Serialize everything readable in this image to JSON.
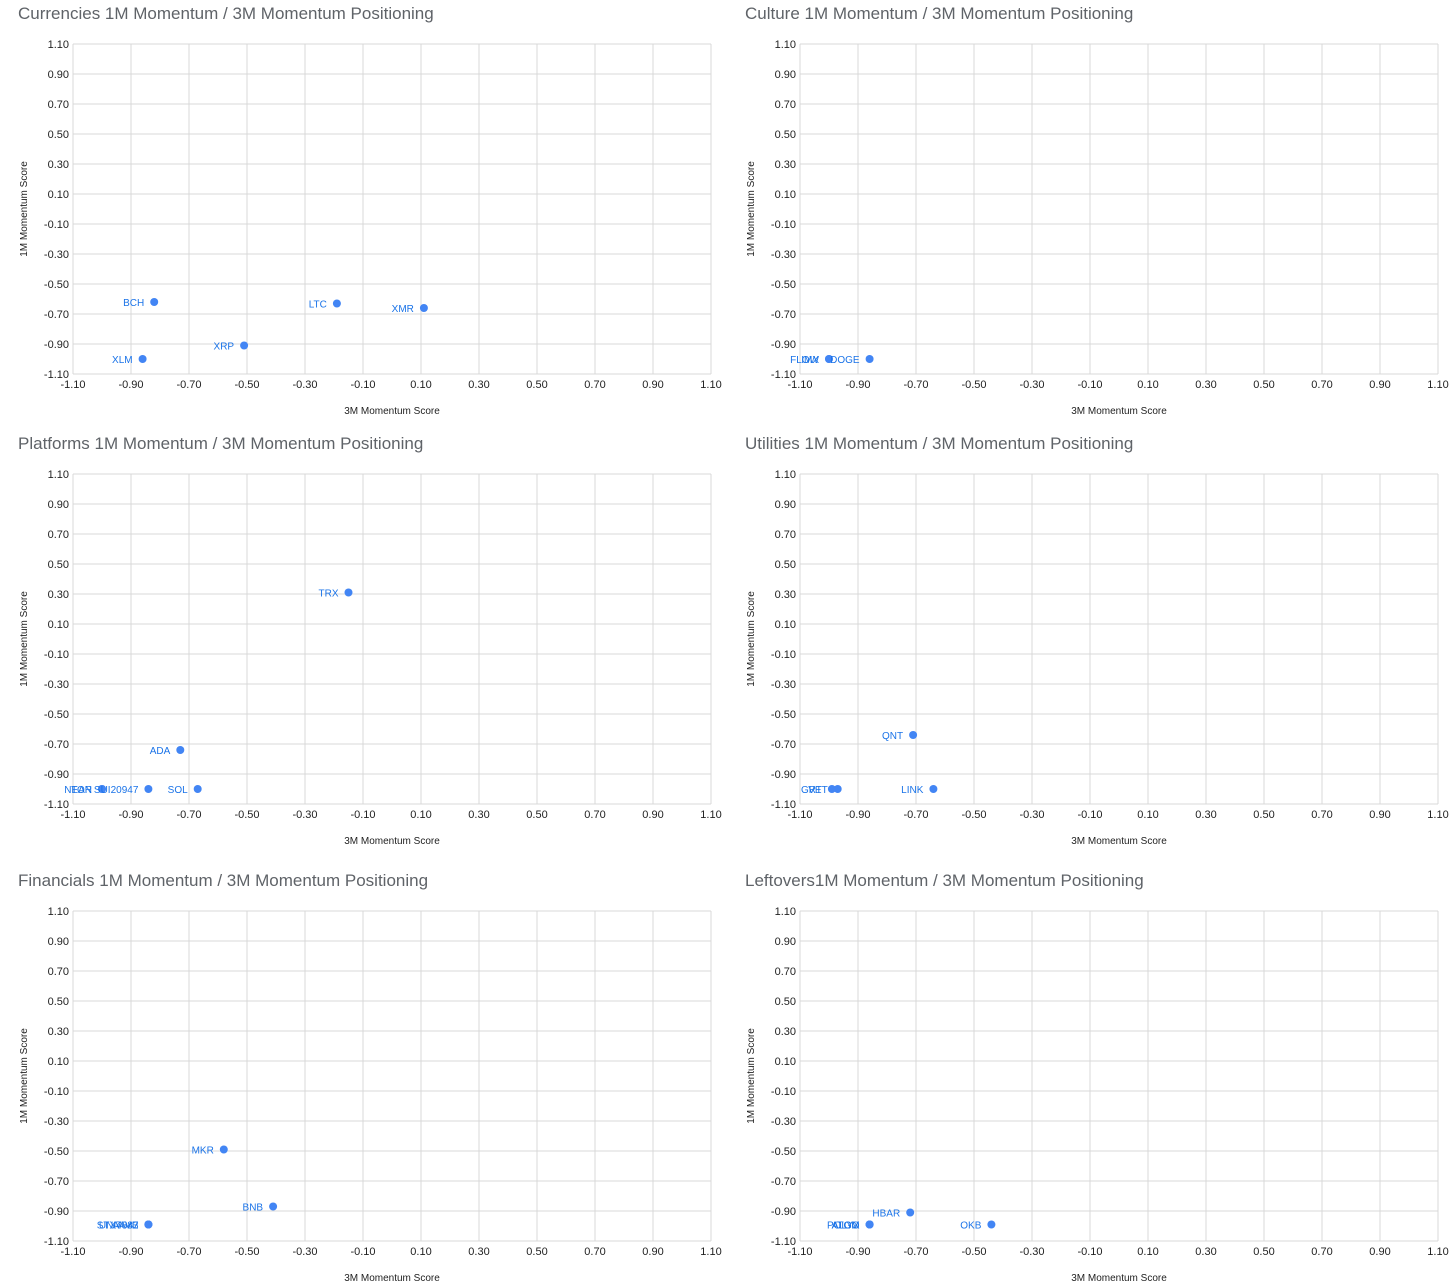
{
  "chart_data": [
    {
      "type": "scatter",
      "title": "Currencies 1M Momentum / 3M Momentum Positioning",
      "xlabel": "3M Momentum Score",
      "ylabel": "1M Momentum Score",
      "xlim": [
        -1.1,
        1.1
      ],
      "ylim": [
        -1.1,
        1.1
      ],
      "ticks": [
        "-1.10",
        "-0.90",
        "-0.70",
        "-0.50",
        "-0.30",
        "-0.10",
        "0.10",
        "0.30",
        "0.50",
        "0.70",
        "0.90",
        "1.10"
      ],
      "grid": true,
      "color": "#4285f4",
      "points": [
        {
          "label": "BCH",
          "x": -0.82,
          "y": -0.62
        },
        {
          "label": "LTC",
          "x": -0.19,
          "y": -0.63
        },
        {
          "label": "XMR",
          "x": 0.11,
          "y": -0.66
        },
        {
          "label": "XRP",
          "x": -0.51,
          "y": -0.91
        },
        {
          "label": "XLM",
          "x": -0.86,
          "y": -1.0
        }
      ]
    },
    {
      "type": "scatter",
      "title": "Culture 1M Momentum / 3M Momentum Positioning",
      "xlabel": "3M Momentum Score",
      "ylabel": "1M Momentum Score",
      "xlim": [
        -1.1,
        1.1
      ],
      "ylim": [
        -1.1,
        1.1
      ],
      "ticks": [
        "-1.10",
        "-0.90",
        "-0.70",
        "-0.50",
        "-0.30",
        "-0.10",
        "0.10",
        "0.30",
        "0.50",
        "0.70",
        "0.90",
        "1.10"
      ],
      "grid": true,
      "color": "#4285f4",
      "points": [
        {
          "label": "IMX",
          "x": -1.0,
          "y": -1.0
        },
        {
          "label": "FLOW",
          "x": -1.0,
          "y": -1.0
        },
        {
          "label": "DOGE",
          "x": -0.86,
          "y": -1.0
        }
      ]
    },
    {
      "type": "scatter",
      "title": "Platforms 1M Momentum / 3M Momentum Positioning",
      "xlabel": "3M Momentum Score",
      "ylabel": "1M Momentum Score",
      "xlim": [
        -1.1,
        1.1
      ],
      "ylim": [
        -1.1,
        1.1
      ],
      "ticks": [
        "-1.10",
        "-0.90",
        "-0.70",
        "-0.50",
        "-0.30",
        "-0.10",
        "0.10",
        "0.30",
        "0.50",
        "0.70",
        "0.90",
        "1.10"
      ],
      "grid": true,
      "color": "#4285f4",
      "points": [
        {
          "label": "TRX",
          "x": -0.15,
          "y": 0.31
        },
        {
          "label": "ADA",
          "x": -0.73,
          "y": -0.74
        },
        {
          "label": "TON",
          "x": -1.0,
          "y": -1.0
        },
        {
          "label": "NEAR",
          "x": -1.0,
          "y": -1.0
        },
        {
          "label": "SUI20947",
          "x": -0.84,
          "y": -1.0
        },
        {
          "label": "SOL",
          "x": -0.67,
          "y": -1.0
        }
      ]
    },
    {
      "type": "scatter",
      "title": "Utilities 1M Momentum / 3M Momentum Positioning",
      "xlabel": "3M Momentum Score",
      "ylabel": "1M Momentum Score",
      "xlim": [
        -1.1,
        1.1
      ],
      "ylim": [
        -1.1,
        1.1
      ],
      "ticks": [
        "-1.10",
        "-0.90",
        "-0.70",
        "-0.50",
        "-0.30",
        "-0.10",
        "0.10",
        "0.30",
        "0.50",
        "0.70",
        "0.90",
        "1.10"
      ],
      "grid": true,
      "color": "#4285f4",
      "points": [
        {
          "label": "QNT",
          "x": -0.71,
          "y": -0.64
        },
        {
          "label": "GRT",
          "x": -0.99,
          "y": -1.0
        },
        {
          "label": "VET",
          "x": -0.97,
          "y": -1.0
        },
        {
          "label": "LINK",
          "x": -0.64,
          "y": -1.0
        }
      ]
    },
    {
      "type": "scatter",
      "title": "Financials 1M Momentum / 3M Momentum Positioning",
      "xlabel": "3M Momentum Score",
      "ylabel": "1M Momentum Score",
      "xlim": [
        -1.1,
        1.1
      ],
      "ylim": [
        -1.1,
        1.1
      ],
      "ticks": [
        "-1.10",
        "-0.90",
        "-0.70",
        "-0.50",
        "-0.30",
        "-0.10",
        "0.10",
        "0.30",
        "0.50",
        "0.70",
        "0.90",
        "1.10"
      ],
      "grid": true,
      "color": "#4285f4",
      "points": [
        {
          "label": "MKR",
          "x": -0.58,
          "y": -0.49
        },
        {
          "label": "BNB",
          "x": -0.41,
          "y": -0.87
        },
        {
          "label": "STX4847",
          "x": -0.84,
          "y": -0.99
        },
        {
          "label": "UNI7083",
          "x": -0.84,
          "y": -0.99
        },
        {
          "label": "AAVE",
          "x": -0.84,
          "y": -0.99
        }
      ]
    },
    {
      "type": "scatter",
      "title": "Leftovers1M Momentum / 3M Momentum Positioning",
      "xlabel": "3M Momentum Score",
      "ylabel": "1M Momentum Score",
      "xlim": [
        -1.1,
        1.1
      ],
      "ylim": [
        -1.1,
        1.1
      ],
      "ticks": [
        "-1.10",
        "-0.90",
        "-0.70",
        "-0.50",
        "-0.30",
        "-0.10",
        "0.10",
        "0.30",
        "0.50",
        "0.70",
        "0.90",
        "1.10"
      ],
      "grid": true,
      "color": "#4285f4",
      "points": [
        {
          "label": "HBAR",
          "x": -0.72,
          "y": -0.91
        },
        {
          "label": "OKB",
          "x": -0.44,
          "y": -0.99
        },
        {
          "label": "ATOM",
          "x": -0.86,
          "y": -0.99
        },
        {
          "label": "POLYX",
          "x": -0.86,
          "y": -0.99
        },
        {
          "label": "ALGO",
          "x": -0.86,
          "y": -0.99
        }
      ]
    }
  ]
}
